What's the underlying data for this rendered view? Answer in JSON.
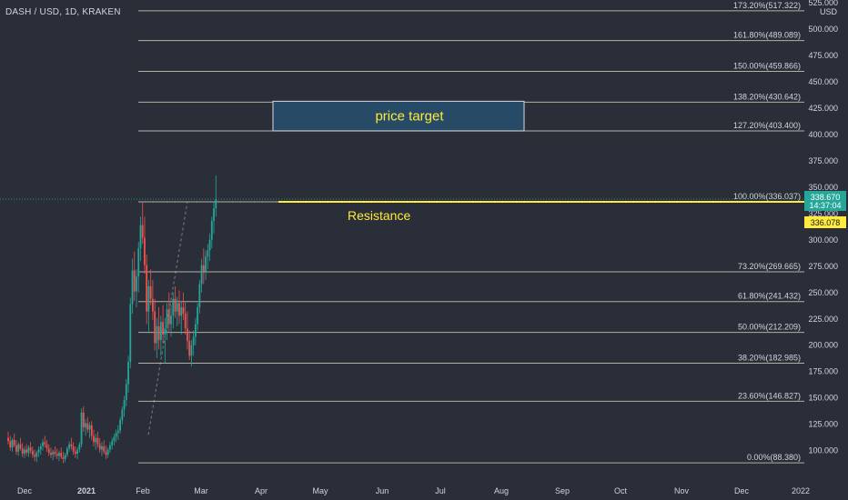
{
  "header": {
    "symbol_title": "DASH / USD, 1D, KRAKEN",
    "currency": "USD"
  },
  "colors": {
    "background": "#2a2e39",
    "axis_panel": "#2a2e39",
    "bull": "#26a69a",
    "bear": "#ef5350",
    "fib_line": "#c9c9b4",
    "resistance": "#ffeb3b",
    "target_fill": "#274a67",
    "target_border": "#d9d9d9",
    "price_badge": "#26a69a",
    "resistance_badge": "#ffeb3b",
    "text": "#d1d4dc",
    "annotation": "#ffeb3b"
  },
  "chart_data": {
    "type": "candlestick",
    "title": "DASH / USD, 1D, KRAKEN",
    "x_ticks": [
      "Dec",
      "2021",
      "Feb",
      "Mar",
      "Apr",
      "May",
      "Jun",
      "Jul",
      "Aug",
      "Sep",
      "Oct",
      "Nov",
      "Dec",
      "2022"
    ],
    "y_ticks": [
      100,
      125,
      150,
      175,
      200,
      225,
      250,
      275,
      300,
      325,
      350,
      375,
      400,
      425,
      450,
      475,
      500,
      525
    ],
    "ylim": [
      79,
      525
    ],
    "fib_levels": [
      {
        "label": "0.00%(88.380)",
        "value": 88.38
      },
      {
        "label": "23.60%(146.827)",
        "value": 146.827
      },
      {
        "label": "38.20%(182.985)",
        "value": 182.985
      },
      {
        "label": "50.00%(212.209)",
        "value": 212.209
      },
      {
        "label": "61.80%(241.432)",
        "value": 241.432
      },
      {
        "label": "73.20%(269.665)",
        "value": 269.665
      },
      {
        "label": "100.00%(336.037)",
        "value": 336.037
      },
      {
        "label": "127.20%(403.400)",
        "value": 403.4
      },
      {
        "label": "138.20%(430.642)",
        "value": 430.642
      },
      {
        "label": "150.00%(459.866)",
        "value": 459.866
      },
      {
        "label": "161.80%(489.089)",
        "value": 489.089
      },
      {
        "label": "173.20%(517.322)",
        "value": 517.322
      }
    ],
    "resistance": {
      "value": 336.078,
      "label": "Resistance"
    },
    "target_box": {
      "label": "price target",
      "low": 403.4,
      "high": 431.5
    },
    "last_price": {
      "price": "338.670",
      "countdown": "14:37:04",
      "value": 338.67
    },
    "resistance_price": {
      "label": "336.078",
      "value": 336.078
    },
    "candles": [
      [
        112,
        118,
        106,
        109
      ],
      [
        109,
        114,
        100,
        103
      ],
      [
        103,
        112,
        99,
        110
      ],
      [
        110,
        116,
        103,
        105
      ],
      [
        105,
        110,
        96,
        99
      ],
      [
        99,
        108,
        95,
        106
      ],
      [
        106,
        112,
        100,
        102
      ],
      [
        102,
        107,
        94,
        97
      ],
      [
        97,
        104,
        93,
        101
      ],
      [
        101,
        106,
        95,
        98
      ],
      [
        98,
        105,
        94,
        103
      ],
      [
        103,
        108,
        97,
        100
      ],
      [
        100,
        104,
        93,
        96
      ],
      [
        96,
        101,
        90,
        94
      ],
      [
        94,
        100,
        89,
        98
      ],
      [
        98,
        104,
        94,
        101
      ],
      [
        101,
        107,
        96,
        104
      ],
      [
        104,
        111,
        100,
        108
      ],
      [
        108,
        114,
        103,
        106
      ],
      [
        106,
        110,
        99,
        102
      ],
      [
        102,
        106,
        95,
        98
      ],
      [
        98,
        103,
        93,
        96
      ],
      [
        96,
        101,
        91,
        99
      ],
      [
        99,
        104,
        94,
        97
      ],
      [
        97,
        102,
        92,
        95
      ],
      [
        95,
        100,
        90,
        98
      ],
      [
        98,
        103,
        92,
        94
      ],
      [
        94,
        99,
        88,
        92
      ],
      [
        92,
        98,
        89,
        96
      ],
      [
        96,
        104,
        94,
        102
      ],
      [
        102,
        109,
        99,
        106
      ],
      [
        106,
        112,
        101,
        104
      ],
      [
        104,
        108,
        96,
        99
      ],
      [
        99,
        104,
        93,
        97
      ],
      [
        97,
        103,
        92,
        101
      ],
      [
        101,
        108,
        98,
        106
      ],
      [
        106,
        140,
        103,
        136
      ],
      [
        136,
        142,
        118,
        122
      ],
      [
        122,
        130,
        114,
        126
      ],
      [
        126,
        132,
        117,
        120
      ],
      [
        120,
        127,
        112,
        124
      ],
      [
        124,
        128,
        110,
        114
      ],
      [
        114,
        120,
        104,
        108
      ],
      [
        108,
        116,
        101,
        112
      ],
      [
        112,
        118,
        103,
        106
      ],
      [
        106,
        112,
        98,
        101
      ],
      [
        101,
        108,
        95,
        104
      ],
      [
        104,
        110,
        97,
        99
      ],
      [
        99,
        105,
        92,
        96
      ],
      [
        96,
        103,
        93,
        101
      ],
      [
        101,
        108,
        98,
        105
      ],
      [
        105,
        112,
        101,
        109
      ],
      [
        109,
        116,
        105,
        113
      ],
      [
        113,
        120,
        108,
        117
      ],
      [
        117,
        124,
        110,
        119
      ],
      [
        119,
        132,
        116,
        129
      ],
      [
        129,
        142,
        125,
        139
      ],
      [
        139,
        152,
        132,
        148
      ],
      [
        148,
        168,
        142,
        163
      ],
      [
        163,
        190,
        155,
        184
      ],
      [
        184,
        245,
        178,
        239
      ],
      [
        239,
        282,
        230,
        271
      ],
      [
        271,
        289,
        242,
        251
      ],
      [
        251,
        272,
        236,
        265
      ],
      [
        265,
        298,
        250,
        292
      ],
      [
        292,
        322,
        280,
        314
      ],
      [
        314,
        336,
        296,
        302
      ],
      [
        302,
        322,
        268,
        276
      ],
      [
        276,
        286,
        220,
        232
      ],
      [
        232,
        262,
        213,
        256
      ],
      [
        256,
        272,
        238,
        244
      ],
      [
        244,
        262,
        224,
        232
      ],
      [
        232,
        244,
        195,
        202
      ],
      [
        202,
        226,
        188,
        218
      ],
      [
        218,
        236,
        196,
        205
      ],
      [
        205,
        228,
        190,
        222
      ],
      [
        222,
        238,
        202,
        210
      ],
      [
        210,
        226,
        183,
        216
      ],
      [
        216,
        240,
        205,
        234
      ],
      [
        234,
        250,
        212,
        220
      ],
      [
        220,
        238,
        208,
        228
      ],
      [
        228,
        250,
        216,
        244
      ],
      [
        244,
        256,
        226,
        232
      ],
      [
        232,
        246,
        218,
        240
      ],
      [
        240,
        252,
        220,
        228
      ],
      [
        228,
        242,
        210,
        236
      ],
      [
        236,
        250,
        224,
        230
      ],
      [
        230,
        242,
        210,
        216
      ],
      [
        216,
        232,
        196,
        204
      ],
      [
        204,
        214,
        186,
        190
      ],
      [
        190,
        205,
        180,
        200
      ],
      [
        200,
        214,
        190,
        208
      ],
      [
        208,
        226,
        200,
        220
      ],
      [
        220,
        240,
        214,
        236
      ],
      [
        236,
        262,
        230,
        258
      ],
      [
        258,
        282,
        250,
        276
      ],
      [
        276,
        292,
        258,
        270
      ],
      [
        270,
        290,
        262,
        284
      ],
      [
        284,
        296,
        272,
        290
      ],
      [
        290,
        306,
        280,
        300
      ],
      [
        300,
        322,
        292,
        318
      ],
      [
        318,
        336,
        306,
        330
      ],
      [
        330,
        361,
        322,
        338.67
      ]
    ]
  }
}
